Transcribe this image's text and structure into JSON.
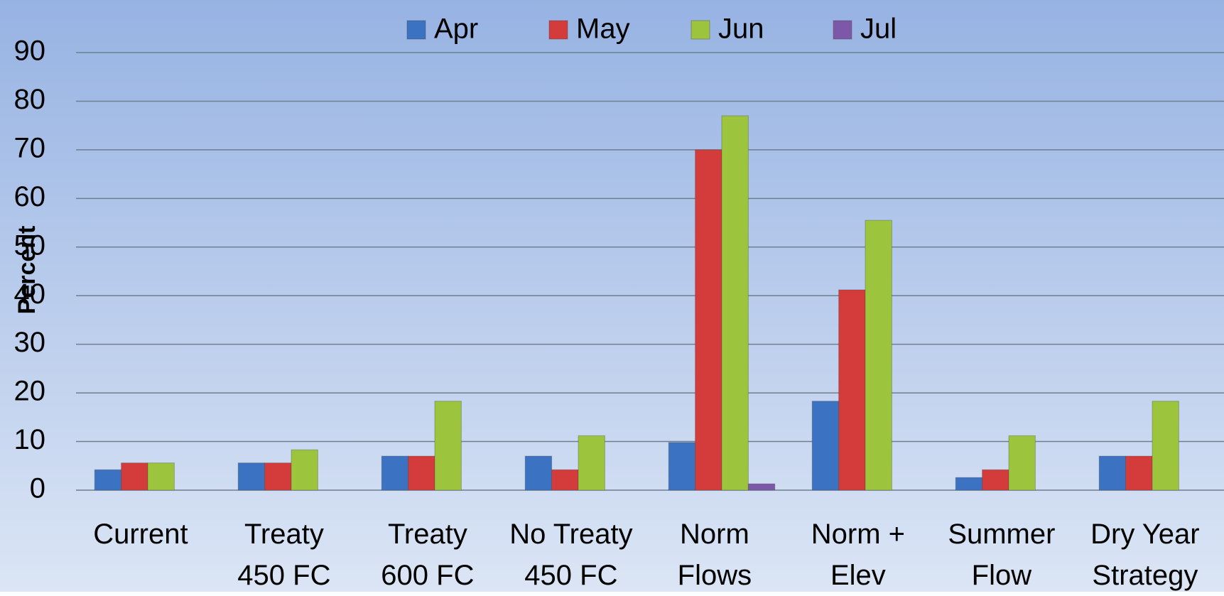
{
  "chart_data": {
    "type": "bar",
    "y_label": "Percent",
    "categories": [
      "Current",
      "Treaty\n450 FC",
      "Treaty\n600 FC",
      "No Treaty\n450 FC",
      "Norm\nFlows",
      "Norm +\nElev",
      "Summer\nFlow",
      "Dry Year\nStrategy"
    ],
    "series": [
      {
        "name": "Apr",
        "color": "#3b73c2",
        "values": [
          4.2,
          5.6,
          7,
          7,
          9.8,
          18.3,
          2.6,
          7
        ]
      },
      {
        "name": "May",
        "color": "#d43b3b",
        "values": [
          5.6,
          5.6,
          7,
          4.2,
          70,
          41.2,
          4.2,
          7
        ]
      },
      {
        "name": "Jun",
        "color": "#9cc43c",
        "values": [
          5.6,
          8.3,
          18.3,
          11.2,
          77,
          55.5,
          11.2,
          18.3
        ]
      },
      {
        "name": "Jul",
        "color": "#7d57a8",
        "values": [
          null,
          null,
          null,
          null,
          1.3,
          null,
          null,
          null
        ]
      }
    ],
    "ylim": [
      0,
      90
    ],
    "yticks": [
      0,
      10,
      20,
      30,
      40,
      50,
      60,
      70,
      80,
      90
    ],
    "grid": true,
    "legend": "top"
  }
}
